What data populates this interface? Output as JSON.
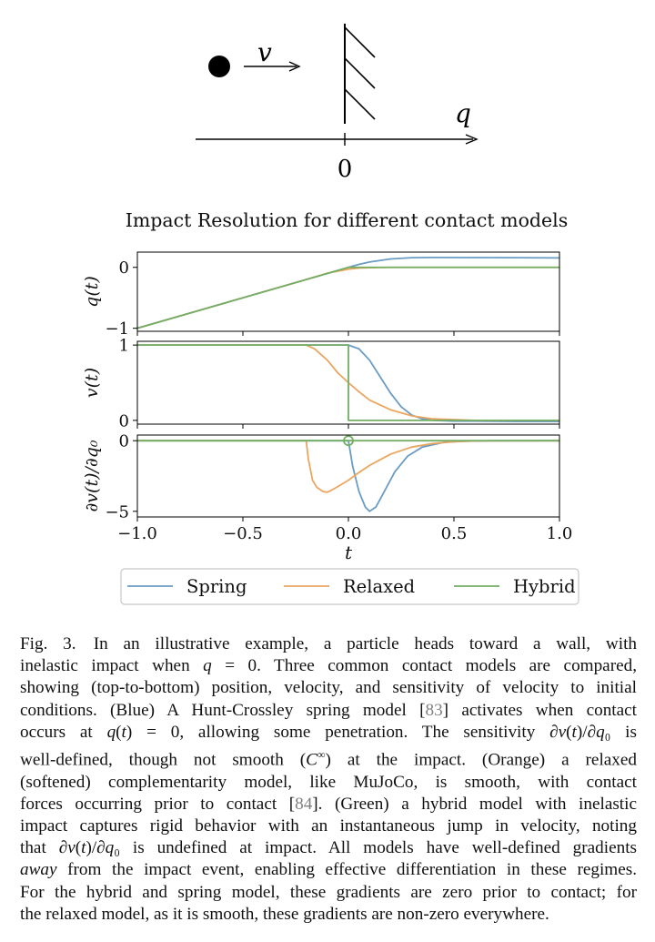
{
  "schematic": {
    "velocity_label": "v",
    "axis_label": "q",
    "zero_label": "0"
  },
  "chart_data": {
    "type": "line",
    "title": "Impact Resolution for different contact models",
    "xlabel": "t",
    "xlim": [
      -1.0,
      1.0
    ],
    "x_ticks": [
      "−1.0",
      "−0.5",
      "0.0",
      "0.5",
      "1.0"
    ],
    "x_tick_values": [
      -1.0,
      -0.5,
      0.0,
      0.5,
      1.0
    ],
    "legend": {
      "placement": "bottom-center",
      "entries": [
        "Spring",
        "Relaxed",
        "Hybrid"
      ]
    },
    "colors": {
      "Spring": "#6a9cc4",
      "Relaxed": "#eaa660",
      "Hybrid": "#73ae64"
    },
    "panels": [
      {
        "ylabel": "q(t)",
        "ylim": [
          -1.05,
          0.25
        ],
        "y_ticks": [
          "0",
          "−1"
        ],
        "y_tick_values": [
          0,
          -1
        ],
        "series": [
          {
            "name": "Spring",
            "x": [
              -1.0,
              -0.5,
              0.0,
              0.05,
              0.1,
              0.2,
              0.3,
              0.4,
              0.6,
              0.8,
              1.0
            ],
            "y": [
              -1.0,
              -0.5,
              0.0,
              0.048,
              0.088,
              0.138,
              0.158,
              0.162,
              0.16,
              0.158,
              0.155
            ]
          },
          {
            "name": "Relaxed",
            "x": [
              -1.0,
              -0.5,
              -0.2,
              -0.1,
              0.0,
              0.05,
              0.1,
              0.2,
              0.4,
              1.0
            ],
            "y": [
              -1.0,
              -0.5,
              -0.2,
              -0.095,
              -0.03,
              -0.012,
              -0.005,
              0.0,
              0.0,
              0.0
            ]
          },
          {
            "name": "Hybrid",
            "x": [
              -1.0,
              0.0,
              1.0
            ],
            "y": [
              -1.0,
              0.0,
              0.0
            ]
          }
        ]
      },
      {
        "ylabel": "v(t)",
        "ylim": [
          -0.05,
          1.05
        ],
        "y_ticks": [
          "1",
          "0"
        ],
        "y_tick_values": [
          1,
          0
        ],
        "series": [
          {
            "name": "Spring",
            "x": [
              -1.0,
              0.0,
              0.05,
              0.1,
              0.15,
              0.2,
              0.25,
              0.3,
              0.35,
              0.4,
              0.5,
              0.6,
              0.8,
              1.0
            ],
            "y": [
              1.0,
              1.0,
              0.95,
              0.8,
              0.58,
              0.36,
              0.18,
              0.07,
              0.02,
              0.0,
              -0.01,
              -0.01,
              -0.015,
              -0.015
            ]
          },
          {
            "name": "Relaxed",
            "x": [
              -1.0,
              -0.2,
              -0.16,
              -0.1,
              -0.05,
              0.0,
              0.05,
              0.1,
              0.2,
              0.3,
              0.4,
              0.6,
              1.0
            ],
            "y": [
              1.0,
              1.0,
              0.95,
              0.8,
              0.63,
              0.5,
              0.38,
              0.27,
              0.14,
              0.06,
              0.02,
              0.0,
              0.0
            ]
          },
          {
            "name": "Hybrid",
            "x": [
              -1.0,
              0.0,
              0.0,
              1.0
            ],
            "y": [
              1.0,
              1.0,
              0.0,
              0.0
            ]
          }
        ]
      },
      {
        "ylabel": "∂v(t)/∂q₀",
        "ylim": [
          -5.4,
          0.4
        ],
        "y_ticks": [
          "0",
          "−5"
        ],
        "y_tick_values": [
          0,
          -5
        ],
        "series": [
          {
            "name": "Spring",
            "x": [
              -1.0,
              0.0,
              0.02,
              0.05,
              0.08,
              0.1,
              0.13,
              0.17,
              0.22,
              0.28,
              0.35,
              0.45,
              0.55,
              0.7,
              1.0
            ],
            "y": [
              0.0,
              0.0,
              -1.8,
              -3.6,
              -4.7,
              -5.0,
              -4.7,
              -3.6,
              -2.2,
              -1.1,
              -0.45,
              -0.12,
              -0.03,
              0.0,
              0.0
            ]
          },
          {
            "name": "Relaxed",
            "x": [
              -1.0,
              -0.2,
              -0.19,
              -0.17,
              -0.15,
              -0.12,
              -0.1,
              -0.08,
              -0.05,
              0.0,
              0.05,
              0.1,
              0.2,
              0.3,
              0.4,
              0.5,
              0.6,
              1.0
            ],
            "y": [
              0.0,
              0.0,
              -1.3,
              -2.8,
              -3.3,
              -3.6,
              -3.65,
              -3.5,
              -3.25,
              -2.8,
              -2.25,
              -1.75,
              -0.95,
              -0.45,
              -0.2,
              -0.07,
              -0.02,
              0.0
            ]
          },
          {
            "name": "Hybrid",
            "x": [
              -1.0,
              1.0
            ],
            "y": [
              0.0,
              0.0
            ]
          }
        ],
        "annotation": {
          "type": "open-circle",
          "x": 0.0,
          "y": 0.0,
          "series": "Hybrid"
        }
      }
    ]
  },
  "caption": {
    "label": "Fig. 3.",
    "lines": [
      {
        "parts": [
          {
            "t": "Fig. 3. In an illustrative example, a particle heads toward a wall, with"
          }
        ]
      },
      {
        "parts": [
          {
            "t": "inelastic impact when "
          },
          {
            "t": "q",
            "i": true
          },
          {
            "t": " = 0. Three common contact models are compared,"
          }
        ]
      },
      {
        "parts": [
          {
            "t": "showing (top-to-bottom) position, velocity, and sensitivity of velocity to initial"
          }
        ]
      },
      {
        "parts": [
          {
            "t": "conditions. (Blue) A Hunt-Crossley spring model ["
          },
          {
            "t": "83",
            "ref": true
          },
          {
            "t": "] activates when contact"
          }
        ]
      },
      {
        "parts": [
          {
            "t": "occurs at "
          },
          {
            "t": "q",
            "i": true
          },
          {
            "t": "("
          },
          {
            "t": "t",
            "i": true
          },
          {
            "t": ") = 0, allowing some penetration. The sensitivity ∂"
          },
          {
            "t": "v",
            "i": true
          },
          {
            "t": "("
          },
          {
            "t": "t",
            "i": true
          },
          {
            "t": ")/∂"
          },
          {
            "t": "q",
            "i": true
          },
          {
            "t": "₀ is"
          }
        ]
      },
      {
        "parts": [
          {
            "t": "well-defined, though not smooth ("
          },
          {
            "t": "C",
            "i": true
          },
          {
            "t": "^∞"
          },
          {
            "t": ") at the impact. (Orange) a relaxed"
          }
        ]
      },
      {
        "parts": [
          {
            "t": "(softened) complementarity model, like MuJoCo, is smooth, with contact"
          }
        ]
      },
      {
        "parts": [
          {
            "t": "forces occurring prior to contact ["
          },
          {
            "t": "84",
            "ref": true
          },
          {
            "t": "]. (Green) a hybrid model with inelastic"
          }
        ]
      },
      {
        "parts": [
          {
            "t": "impact captures rigid behavior with an instantaneous jump in velocity, noting"
          }
        ]
      },
      {
        "parts": [
          {
            "t": "that ∂"
          },
          {
            "t": "v",
            "i": true
          },
          {
            "t": "("
          },
          {
            "t": "t",
            "i": true
          },
          {
            "t": ")/∂"
          },
          {
            "t": "q",
            "i": true
          },
          {
            "t": "₀ is undefined at impact. All models have well-defined gradients"
          }
        ]
      },
      {
        "parts": [
          {
            "t": "away",
            "i": true
          },
          {
            "t": " from the impact event, enabling effective differentiation in these regimes."
          }
        ]
      },
      {
        "parts": [
          {
            "t": "For the hybrid and spring model, these gradients are zero prior to contact; for"
          }
        ]
      },
      {
        "parts": [
          {
            "t": "the relaxed model, as it is smooth, these gradients are non-zero everywhere."
          }
        ]
      }
    ]
  }
}
